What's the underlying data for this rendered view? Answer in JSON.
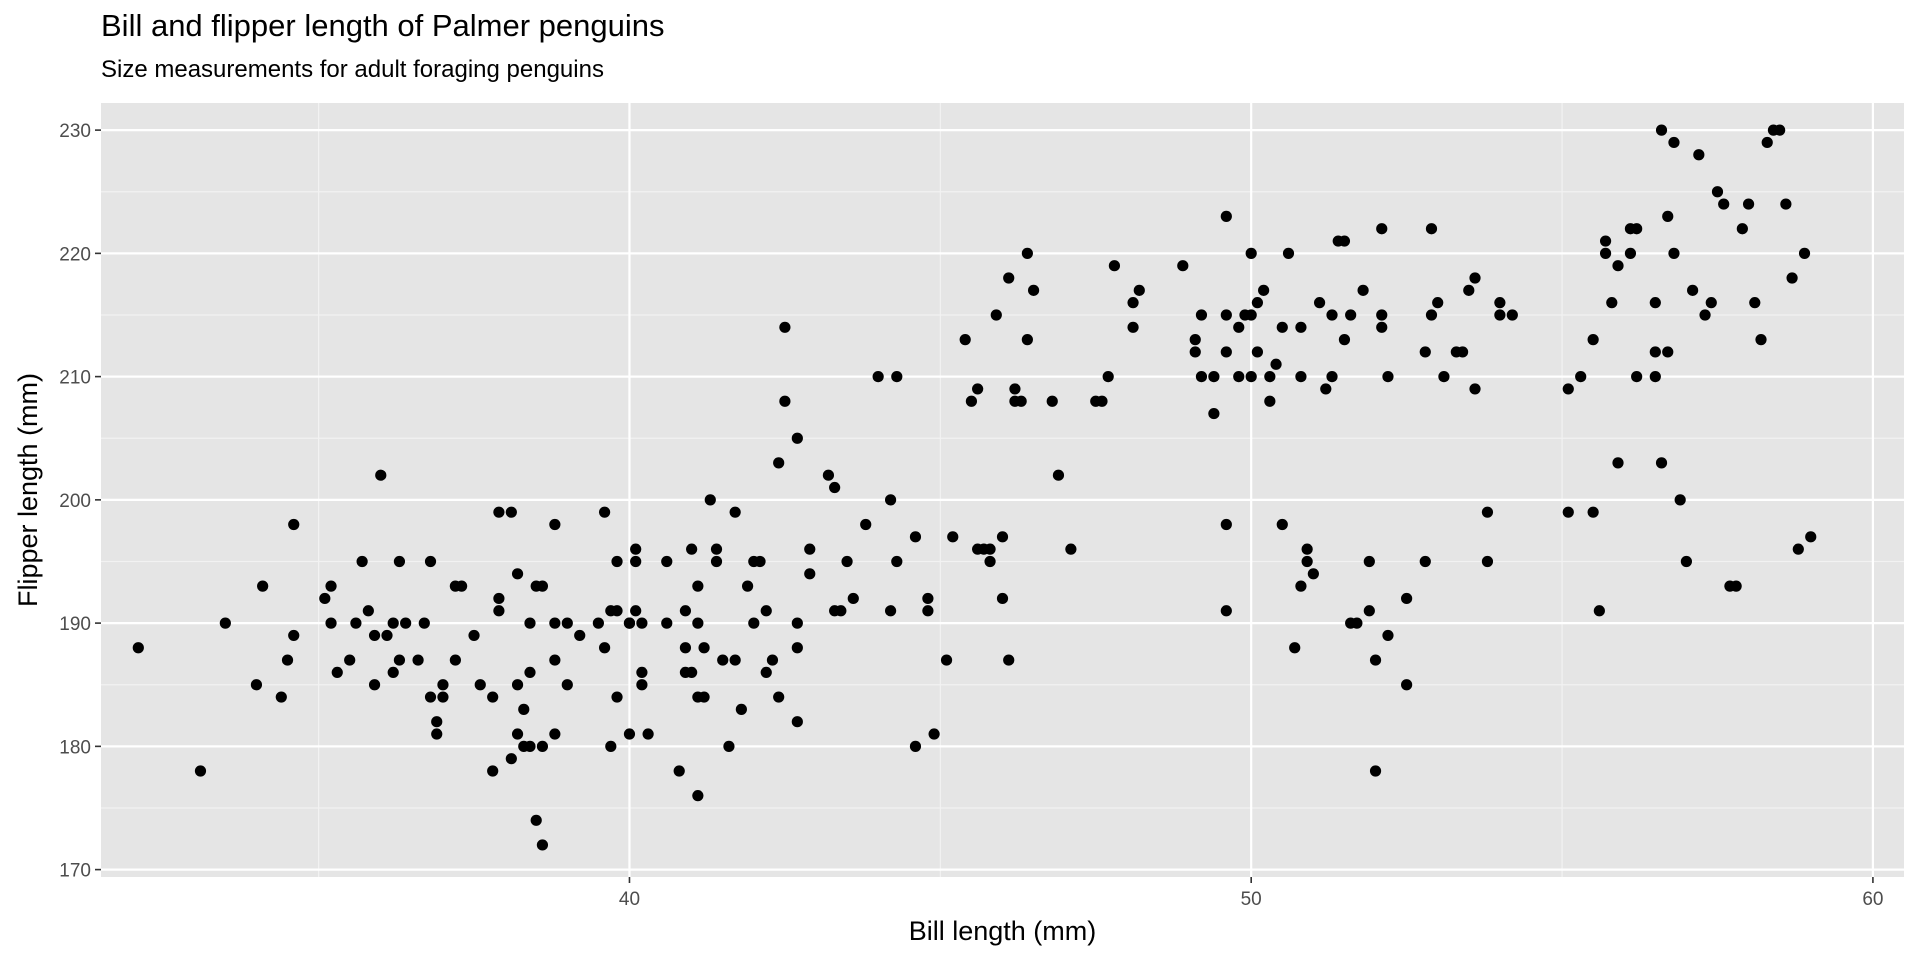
{
  "chart_data": {
    "type": "scatter",
    "title": "Bill and flipper length of Palmer penguins",
    "subtitle": "Size measurements for adult foraging penguins",
    "xlabel": "Bill length (mm)",
    "ylabel": "Flipper length (mm)",
    "xlim": [
      31.5,
      60.5
    ],
    "ylim": [
      169.4,
      232.2
    ],
    "x_ticks": [
      40,
      50,
      60
    ],
    "y_ticks": [
      170,
      180,
      190,
      200,
      210,
      220,
      230
    ],
    "x_tick_labels": [
      "40",
      "50",
      "60"
    ],
    "y_tick_labels": [
      "170",
      "180",
      "190",
      "200",
      "210",
      "220",
      "230"
    ],
    "grid": true,
    "panel_background": "#e5e5e5",
    "grid_color": "#ffffff",
    "point_color": "#000000",
    "points": [
      [
        32.1,
        188
      ],
      [
        33.1,
        178
      ],
      [
        33.5,
        190
      ],
      [
        34.0,
        185
      ],
      [
        34.1,
        193
      ],
      [
        34.4,
        184
      ],
      [
        34.5,
        187
      ],
      [
        34.6,
        189
      ],
      [
        34.6,
        198
      ],
      [
        35.1,
        192
      ],
      [
        35.2,
        190
      ],
      [
        35.2,
        193
      ],
      [
        35.3,
        186
      ],
      [
        35.5,
        187
      ],
      [
        35.6,
        190
      ],
      [
        35.7,
        195
      ],
      [
        35.8,
        191
      ],
      [
        35.9,
        185
      ],
      [
        35.9,
        189
      ],
      [
        36.0,
        202
      ],
      [
        36.1,
        189
      ],
      [
        36.2,
        190
      ],
      [
        36.2,
        186
      ],
      [
        36.3,
        187
      ],
      [
        36.3,
        195
      ],
      [
        36.4,
        190
      ],
      [
        36.6,
        187
      ],
      [
        36.7,
        190
      ],
      [
        36.8,
        195
      ],
      [
        36.8,
        184
      ],
      [
        36.9,
        181
      ],
      [
        36.9,
        182
      ],
      [
        37.0,
        184
      ],
      [
        37.0,
        185
      ],
      [
        37.2,
        193
      ],
      [
        37.2,
        187
      ],
      [
        37.3,
        193
      ],
      [
        37.5,
        189
      ],
      [
        37.6,
        185
      ],
      [
        37.8,
        184
      ],
      [
        37.8,
        178
      ],
      [
        37.9,
        191
      ],
      [
        37.9,
        192
      ],
      [
        37.9,
        199
      ],
      [
        38.1,
        199
      ],
      [
        38.2,
        194
      ],
      [
        38.2,
        185
      ],
      [
        38.2,
        181
      ],
      [
        38.3,
        183
      ],
      [
        38.3,
        180
      ],
      [
        38.4,
        190
      ],
      [
        38.4,
        186
      ],
      [
        38.5,
        193
      ],
      [
        38.5,
        174
      ],
      [
        38.6,
        172
      ],
      [
        38.6,
        193
      ],
      [
        38.4,
        180
      ],
      [
        38.6,
        180
      ],
      [
        38.1,
        179
      ],
      [
        38.8,
        198
      ],
      [
        38.8,
        187
      ],
      [
        38.8,
        181
      ],
      [
        38.8,
        190
      ],
      [
        39.0,
        190
      ],
      [
        39.0,
        185
      ],
      [
        39.2,
        189
      ],
      [
        39.5,
        190
      ],
      [
        39.6,
        188
      ],
      [
        39.6,
        199
      ],
      [
        39.7,
        191
      ],
      [
        39.7,
        180
      ],
      [
        39.8,
        195
      ],
      [
        39.8,
        184
      ],
      [
        39.8,
        191
      ],
      [
        40.0,
        190
      ],
      [
        40.0,
        190
      ],
      [
        40.0,
        181
      ],
      [
        40.1,
        191
      ],
      [
        40.1,
        196
      ],
      [
        40.1,
        195
      ],
      [
        40.2,
        190
      ],
      [
        40.2,
        185
      ],
      [
        40.2,
        186
      ],
      [
        40.3,
        181
      ],
      [
        40.6,
        190
      ],
      [
        40.6,
        195
      ],
      [
        40.8,
        178
      ],
      [
        40.9,
        186
      ],
      [
        40.9,
        188
      ],
      [
        40.9,
        191
      ],
      [
        41.0,
        196
      ],
      [
        41.0,
        186
      ],
      [
        41.1,
        184
      ],
      [
        41.1,
        190
      ],
      [
        41.1,
        193
      ],
      [
        41.2,
        184
      ],
      [
        41.2,
        188
      ],
      [
        41.1,
        176
      ],
      [
        41.3,
        200
      ],
      [
        41.4,
        195
      ],
      [
        41.4,
        196
      ],
      [
        41.5,
        187
      ],
      [
        41.6,
        180
      ],
      [
        41.7,
        187
      ],
      [
        41.7,
        199
      ],
      [
        41.8,
        183
      ],
      [
        41.9,
        193
      ],
      [
        42.0,
        190
      ],
      [
        42.0,
        195
      ],
      [
        42.1,
        195
      ],
      [
        42.2,
        191
      ],
      [
        42.2,
        186
      ],
      [
        42.3,
        187
      ],
      [
        42.4,
        203
      ],
      [
        42.4,
        184
      ],
      [
        42.5,
        208
      ],
      [
        42.5,
        214
      ],
      [
        42.7,
        182
      ],
      [
        42.7,
        190
      ],
      [
        42.7,
        188
      ],
      [
        42.7,
        205
      ],
      [
        42.9,
        194
      ],
      [
        42.9,
        196
      ],
      [
        43.2,
        202
      ],
      [
        43.3,
        191
      ],
      [
        43.3,
        201
      ],
      [
        43.4,
        191
      ],
      [
        43.5,
        195
      ],
      [
        43.6,
        192
      ],
      [
        43.8,
        198
      ],
      [
        44.0,
        210
      ],
      [
        44.2,
        200
      ],
      [
        44.2,
        191
      ],
      [
        44.3,
        195
      ],
      [
        44.3,
        210
      ],
      [
        44.6,
        197
      ],
      [
        44.6,
        180
      ],
      [
        44.8,
        192
      ],
      [
        44.8,
        191
      ],
      [
        44.9,
        181
      ],
      [
        45.1,
        187
      ],
      [
        45.2,
        197
      ],
      [
        45.4,
        213
      ],
      [
        45.5,
        208
      ],
      [
        45.6,
        209
      ],
      [
        45.6,
        196
      ],
      [
        45.7,
        196
      ],
      [
        45.8,
        195
      ],
      [
        45.8,
        196
      ],
      [
        45.9,
        215
      ],
      [
        46.0,
        192
      ],
      [
        46.0,
        197
      ],
      [
        46.1,
        218
      ],
      [
        46.1,
        187
      ],
      [
        46.2,
        208
      ],
      [
        46.2,
        209
      ],
      [
        46.3,
        208
      ],
      [
        46.4,
        220
      ],
      [
        46.4,
        213
      ],
      [
        46.5,
        217
      ],
      [
        46.8,
        208
      ],
      [
        46.9,
        202
      ],
      [
        47.1,
        196
      ],
      [
        47.5,
        208
      ],
      [
        47.6,
        208
      ],
      [
        47.7,
        210
      ],
      [
        47.8,
        219
      ],
      [
        48.1,
        214
      ],
      [
        48.1,
        216
      ],
      [
        48.2,
        217
      ],
      [
        48.9,
        219
      ],
      [
        49.1,
        212
      ],
      [
        49.1,
        213
      ],
      [
        49.2,
        210
      ],
      [
        49.2,
        215
      ],
      [
        49.4,
        210
      ],
      [
        49.4,
        207
      ],
      [
        49.6,
        212
      ],
      [
        49.6,
        215
      ],
      [
        49.6,
        223
      ],
      [
        49.6,
        198
      ],
      [
        49.6,
        191
      ],
      [
        49.8,
        214
      ],
      [
        49.8,
        210
      ],
      [
        49.9,
        215
      ],
      [
        50.0,
        210
      ],
      [
        50.0,
        220
      ],
      [
        50.0,
        215
      ],
      [
        50.1,
        212
      ],
      [
        50.1,
        216
      ],
      [
        50.2,
        217
      ],
      [
        50.3,
        210
      ],
      [
        50.3,
        208
      ],
      [
        50.4,
        211
      ],
      [
        50.5,
        198
      ],
      [
        50.5,
        214
      ],
      [
        50.6,
        220
      ],
      [
        50.7,
        188
      ],
      [
        50.8,
        193
      ],
      [
        50.8,
        214
      ],
      [
        50.8,
        210
      ],
      [
        50.9,
        196
      ],
      [
        50.9,
        195
      ],
      [
        51.0,
        194
      ],
      [
        51.1,
        216
      ],
      [
        51.2,
        209
      ],
      [
        51.3,
        210
      ],
      [
        51.3,
        215
      ],
      [
        51.4,
        221
      ],
      [
        51.5,
        213
      ],
      [
        51.5,
        221
      ],
      [
        51.6,
        215
      ],
      [
        51.6,
        190
      ],
      [
        51.7,
        190
      ],
      [
        51.8,
        217
      ],
      [
        51.9,
        191
      ],
      [
        51.9,
        195
      ],
      [
        52.0,
        178
      ],
      [
        52.0,
        187
      ],
      [
        52.1,
        214
      ],
      [
        52.1,
        215
      ],
      [
        52.1,
        222
      ],
      [
        52.2,
        210
      ],
      [
        52.2,
        189
      ],
      [
        52.5,
        185
      ],
      [
        52.5,
        192
      ],
      [
        52.8,
        212
      ],
      [
        52.8,
        195
      ],
      [
        52.9,
        215
      ],
      [
        52.9,
        222
      ],
      [
        53.0,
        216
      ],
      [
        53.1,
        210
      ],
      [
        53.3,
        212
      ],
      [
        53.4,
        212
      ],
      [
        53.5,
        217
      ],
      [
        53.6,
        218
      ],
      [
        53.6,
        209
      ],
      [
        53.8,
        199
      ],
      [
        53.8,
        195
      ],
      [
        54.0,
        216
      ],
      [
        54.0,
        215
      ],
      [
        54.2,
        215
      ],
      [
        55.1,
        209
      ],
      [
        55.1,
        199
      ],
      [
        55.3,
        210
      ],
      [
        55.5,
        213
      ],
      [
        55.5,
        199
      ],
      [
        55.6,
        191
      ],
      [
        55.7,
        221
      ],
      [
        55.7,
        220
      ],
      [
        55.8,
        216
      ],
      [
        55.9,
        203
      ],
      [
        55.9,
        219
      ],
      [
        56.1,
        220
      ],
      [
        56.1,
        222
      ],
      [
        56.2,
        222
      ],
      [
        56.2,
        210
      ],
      [
        56.5,
        210
      ],
      [
        56.5,
        212
      ],
      [
        56.5,
        216
      ],
      [
        56.6,
        230
      ],
      [
        56.6,
        203
      ],
      [
        56.7,
        223
      ],
      [
        56.7,
        212
      ],
      [
        56.8,
        220
      ],
      [
        56.8,
        229
      ],
      [
        56.9,
        200
      ],
      [
        57.0,
        195
      ],
      [
        57.1,
        217
      ],
      [
        57.2,
        228
      ],
      [
        57.3,
        215
      ],
      [
        57.4,
        216
      ],
      [
        57.5,
        225
      ],
      [
        57.6,
        224
      ],
      [
        57.7,
        193
      ],
      [
        57.8,
        193
      ],
      [
        57.9,
        222
      ],
      [
        58.0,
        224
      ],
      [
        58.1,
        216
      ],
      [
        58.2,
        213
      ],
      [
        58.3,
        229
      ],
      [
        58.4,
        230
      ],
      [
        58.5,
        230
      ],
      [
        58.6,
        224
      ],
      [
        58.7,
        218
      ],
      [
        58.8,
        196
      ],
      [
        58.9,
        220
      ],
      [
        59.0,
        197
      ]
    ]
  }
}
